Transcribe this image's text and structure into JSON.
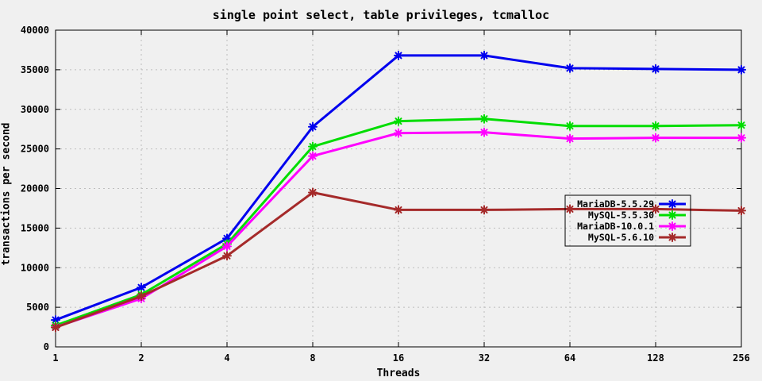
{
  "chart_data": {
    "type": "line",
    "title": "single point select, table privileges, tcmalloc",
    "xlabel": "Threads",
    "ylabel": "transactions per second",
    "x_scale": "log2-categorical",
    "categories": [
      "1",
      "2",
      "4",
      "8",
      "16",
      "32",
      "64",
      "128",
      "256"
    ],
    "ylim": [
      0,
      40000
    ],
    "y_tick_step": 5000,
    "y_tick_labels": [
      "0",
      "5000",
      "10000",
      "15000",
      "20000",
      "25000",
      "30000",
      "35000",
      "40000"
    ],
    "grid": true,
    "background": "#f0f0f0",
    "grid_color": "#bdbdbd",
    "border_color": "#000000",
    "legend": {
      "position": "right-middle",
      "border": true,
      "transparent": true
    },
    "series": [
      {
        "name": "MariaDB-5.5.29",
        "color": "#0000ee",
        "marker": "asterisk",
        "values": [
          3400,
          7500,
          13700,
          27800,
          36800,
          36800,
          35200,
          35100,
          35000
        ]
      },
      {
        "name": "MySQL-5.5.30",
        "color": "#00dd00",
        "marker": "asterisk",
        "values": [
          2700,
          6600,
          13000,
          25300,
          28500,
          28800,
          27900,
          27900,
          28000
        ]
      },
      {
        "name": "MariaDB-10.0.1",
        "color": "#ff00ff",
        "marker": "asterisk",
        "values": [
          2500,
          6100,
          12700,
          24100,
          27000,
          27100,
          26300,
          26400,
          26400
        ]
      },
      {
        "name": "MySQL-5.6.10",
        "color": "#a52a2a",
        "marker": "asterisk",
        "values": [
          2450,
          6400,
          11500,
          19500,
          17300,
          17300,
          17400,
          17400,
          17200
        ]
      }
    ]
  }
}
